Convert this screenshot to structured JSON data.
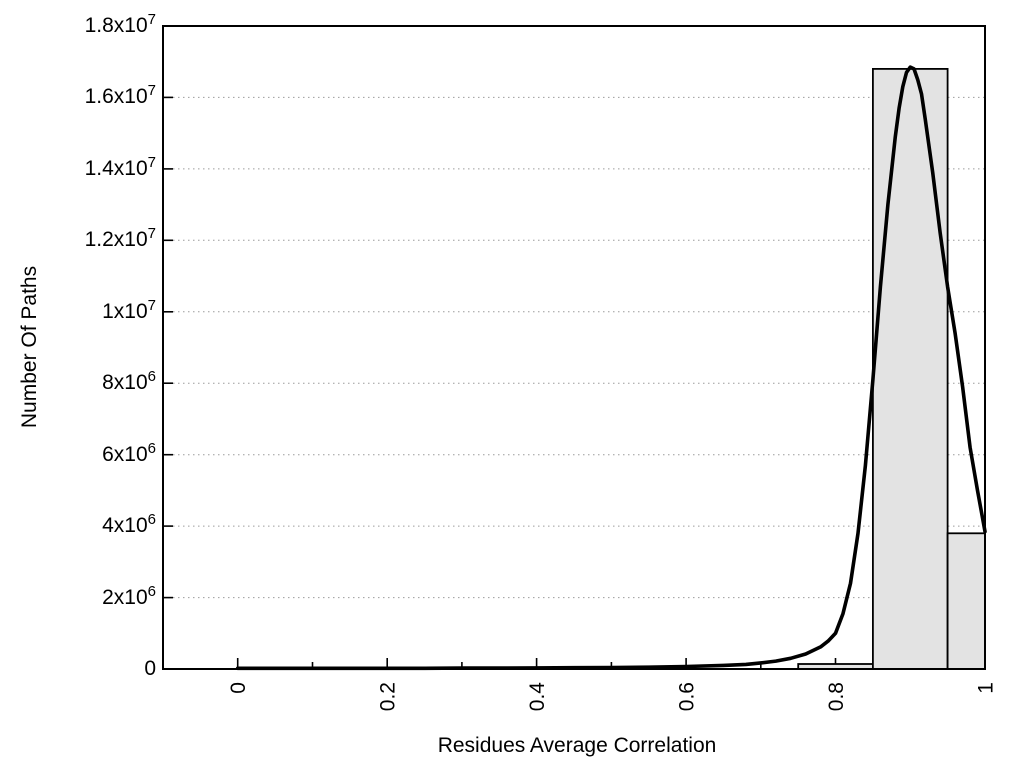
{
  "chart_data": {
    "type": "bar",
    "subtype": "histogram-with-fit-curve",
    "title": "",
    "xlabel": "Residues Average Correlation",
    "ylabel": "Number Of Paths",
    "xlim": [
      -0.1,
      1.0
    ],
    "ylim": [
      0,
      18000000
    ],
    "grid": "horizontal-dotted",
    "legend_position": "none",
    "x_ticks": {
      "major": [
        0,
        0.2,
        0.4,
        0.6,
        0.8,
        1
      ],
      "labels": [
        "0",
        "0.2",
        "0.4",
        "0.6",
        "0.8",
        "1"
      ],
      "minor": [
        0.1,
        0.3,
        0.5,
        0.7,
        0.9
      ],
      "label_rotation_deg": -90
    },
    "y_ticks": [
      {
        "value": 0,
        "base": "0",
        "exp": ""
      },
      {
        "value": 2000000,
        "base": "2x10",
        "exp": "6"
      },
      {
        "value": 4000000,
        "base": "4x10",
        "exp": "6"
      },
      {
        "value": 6000000,
        "base": "6x10",
        "exp": "6"
      },
      {
        "value": 8000000,
        "base": "8x10",
        "exp": "6"
      },
      {
        "value": 10000000,
        "base": "1x10",
        "exp": "7"
      },
      {
        "value": 12000000,
        "base": "1.2x10",
        "exp": "7"
      },
      {
        "value": 14000000,
        "base": "1.4x10",
        "exp": "7"
      },
      {
        "value": 16000000,
        "base": "1.6x10",
        "exp": "7"
      },
      {
        "value": 18000000,
        "base": "1.8x10",
        "exp": "7"
      }
    ],
    "bars": [
      {
        "x0": 0.75,
        "x1": 0.85,
        "value": 140000
      },
      {
        "x0": 0.85,
        "x1": 0.95,
        "value": 16800000
      },
      {
        "x0": 0.95,
        "x1": 1.0,
        "value": 3800000
      }
    ],
    "curve": {
      "name": "fit-curve",
      "points_x": [
        0,
        0.05,
        0.1,
        0.15,
        0.2,
        0.25,
        0.3,
        0.35,
        0.4,
        0.45,
        0.5,
        0.55,
        0.6,
        0.65,
        0.68,
        0.7,
        0.72,
        0.74,
        0.76,
        0.78,
        0.79,
        0.8,
        0.81,
        0.82,
        0.83,
        0.84,
        0.85,
        0.86,
        0.87,
        0.88,
        0.885,
        0.89,
        0.895,
        0.9,
        0.905,
        0.91,
        0.915,
        0.92,
        0.93,
        0.94,
        0.95,
        0.96,
        0.97,
        0.98,
        0.99,
        1.0
      ],
      "values": [
        20000,
        20000,
        20000,
        20000,
        20000,
        20000,
        25000,
        25000,
        30000,
        35000,
        40000,
        50000,
        70000,
        100000,
        130000,
        170000,
        220000,
        300000,
        420000,
        620000,
        780000,
        1000000,
        1550000,
        2400000,
        3800000,
        5700000,
        8100000,
        10700000,
        13000000,
        14900000,
        15700000,
        16300000,
        16700000,
        16850000,
        16800000,
        16500000,
        16100000,
        15400000,
        13900000,
        12200000,
        10700000,
        9400000,
        7900000,
        6200000,
        5000000,
        3850000
      ]
    },
    "colors": {
      "background": "#ffffff",
      "frame": "#000000",
      "grid": "#9c9c9c",
      "bar_fill": "#e3e3e3",
      "bar_stroke": "#000000",
      "curve": "#000000",
      "text": "#000000"
    }
  }
}
